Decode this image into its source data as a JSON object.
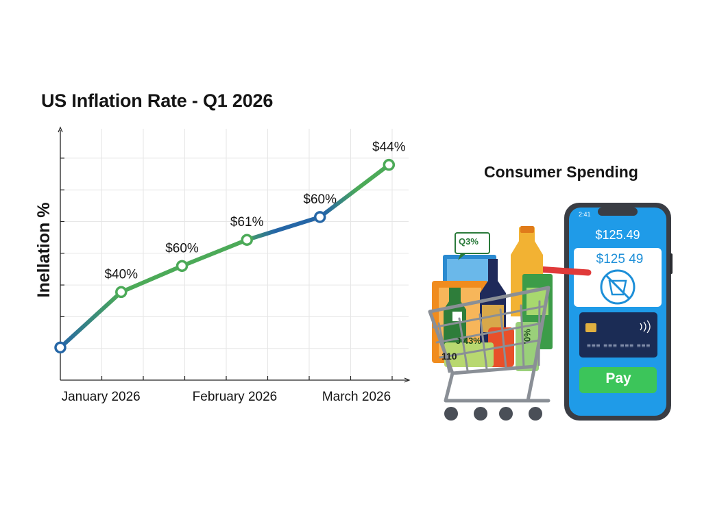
{
  "chart_data": {
    "type": "line",
    "title": "US Inflation Rate - Q1 2026",
    "ylabel": "Inellation %",
    "xlabel": "",
    "categories": [
      "January 2026",
      "February 2026",
      "March 2026"
    ],
    "points": [
      {
        "x": 0.0,
        "y": 1.0,
        "label": ""
      },
      {
        "x": 1.5,
        "y": 2.7,
        "label": "$40%"
      },
      {
        "x": 3.0,
        "y": 3.5,
        "label": "$60%"
      },
      {
        "x": 4.6,
        "y": 4.3,
        "label": "$61%"
      },
      {
        "x": 6.4,
        "y": 5.0,
        "label": "$60%"
      },
      {
        "x": 8.1,
        "y": 6.6,
        "label": "$44%"
      }
    ],
    "xlim": [
      0,
      8.5
    ],
    "ylim": [
      0,
      8
    ],
    "grid": true,
    "colors": {
      "blue": "#2566a6",
      "green": "#4caa58"
    }
  },
  "consumer": {
    "title": "Consumer Spending",
    "phone_status": "2:41",
    "phone_amount": "$125.49",
    "receipt_amount": "$125 49",
    "card_digits": "≡≡≡ ≡≡≡ ≡≡≡ ≡≡≡",
    "pay_label": "Pay",
    "tag_q3": "Q3%",
    "tag_pct1": "J 43%",
    "tag_pct2": "%0.",
    "tag_110": "110"
  }
}
